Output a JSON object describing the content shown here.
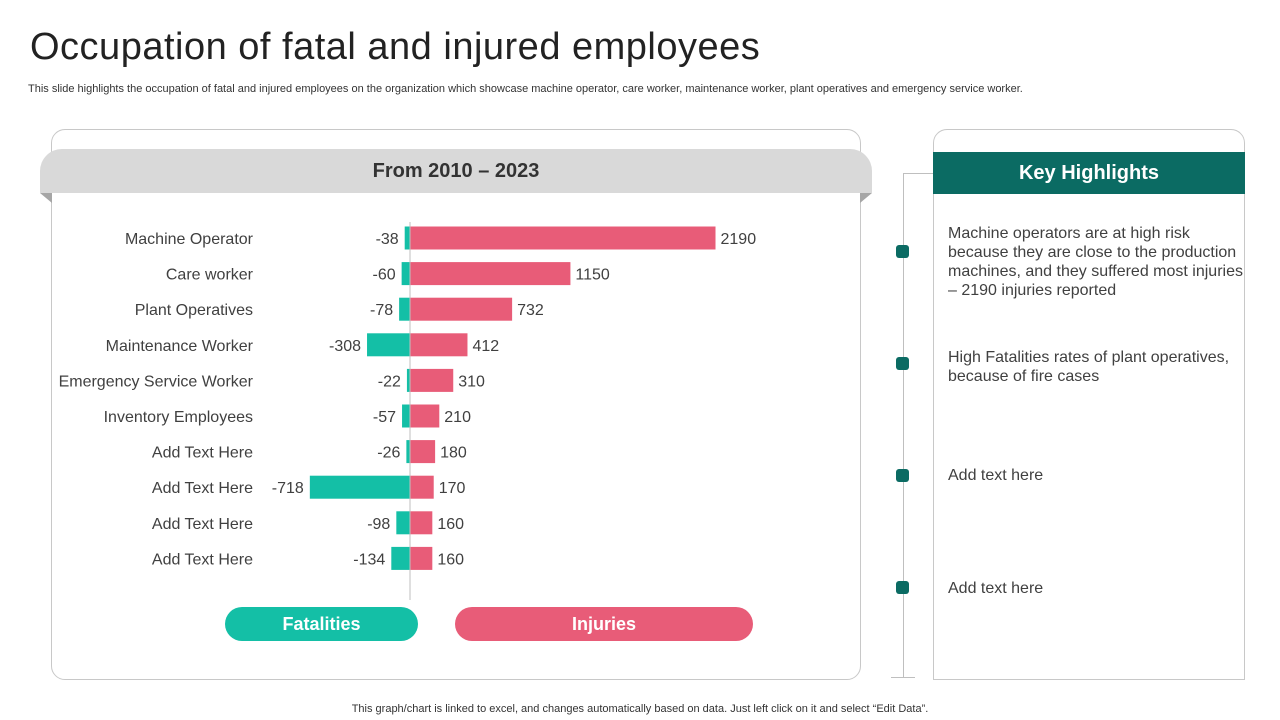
{
  "page": {
    "title": "Occupation of fatal and injured employees",
    "subtitle": "This slide highlights the occupation of fatal and injured employees on the organization which showcase machine operator, care worker, maintenance worker, plant operatives and emergency service worker.",
    "footer": "This graph/chart is linked to excel,  and changes automatically based on data. Just left click on it and select “Edit Data”."
  },
  "colors": {
    "fatalities": "#14bfa6",
    "injuries": "#e85c78",
    "highlight_header": "#0b6b63",
    "marker": "#0b6b63"
  },
  "chart_data": {
    "type": "bar",
    "orientation": "horizontal",
    "period": "From 2010 – 2023",
    "categories": [
      "Machine Operator",
      "Care worker",
      "Plant Operatives",
      "Maintenance Worker",
      "Emergency Service Worker",
      "Inventory Employees",
      "Add Text Here",
      "Add Text Here",
      "Add Text Here",
      "Add Text Here"
    ],
    "series": [
      {
        "name": "Fatalities",
        "values": [
          -38,
          -60,
          -78,
          -308,
          -22,
          -57,
          -26,
          -718,
          -98,
          -134
        ]
      },
      {
        "name": "Injuries",
        "values": [
          2190,
          1150,
          732,
          412,
          310,
          210,
          180,
          170,
          160,
          160
        ]
      }
    ],
    "legend": "bottom",
    "grid": false
  },
  "highlights": {
    "title": "Key Highlights",
    "items": [
      "Machine operators are at high risk because they are close to the production machines, and they suffered most injuries – 2190 injuries reported",
      "High Fatalities rates of plant operatives, because of fire cases",
      "Add text here",
      "Add text here"
    ]
  }
}
